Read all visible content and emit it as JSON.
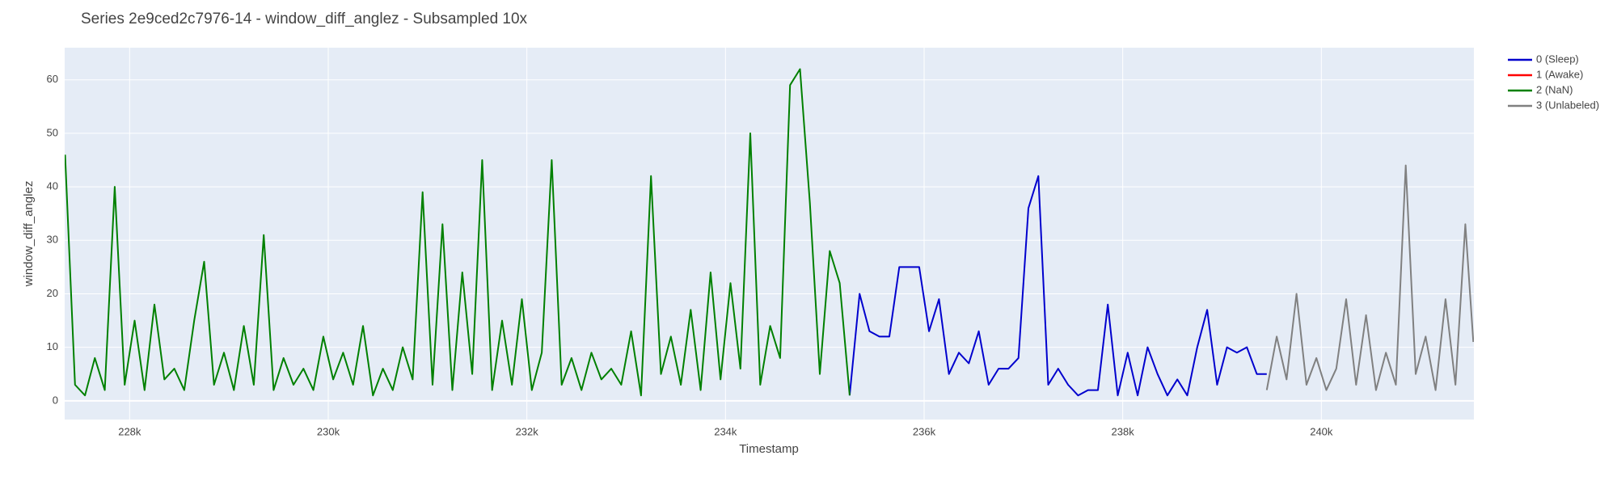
{
  "chart_data": {
    "type": "line",
    "title": "Series 2e9ced2c7976-14 - window_diff_anglez - Subsampled 10x",
    "x_label": "Timestamp",
    "y_label": "window_diff_anglez",
    "xlim": [
      227346,
      241536
    ],
    "ylim": [
      -3.5,
      66
    ],
    "xticks": [
      {
        "value": 228000,
        "label": "228k"
      },
      {
        "value": 230000,
        "label": "230k"
      },
      {
        "value": 232000,
        "label": "232k"
      },
      {
        "value": 234000,
        "label": "234k"
      },
      {
        "value": 236000,
        "label": "236k"
      },
      {
        "value": 238000,
        "label": "238k"
      },
      {
        "value": 240000,
        "label": "240k"
      }
    ],
    "yticks": [
      0,
      10,
      20,
      30,
      40,
      50,
      60
    ],
    "grid": true,
    "legend": "right",
    "series": [
      {
        "name": "0 (Sleep)",
        "color": "#0000cd",
        "x": [
          235250,
          235350,
          235450,
          235550,
          235650,
          235750,
          235850,
          235950,
          236050,
          236150,
          236250,
          236350,
          236450,
          236550,
          236650,
          236750,
          236850,
          236950,
          237050,
          237150,
          237250,
          237350,
          237450,
          237550,
          237650,
          237750,
          237850,
          237950,
          238050,
          238150,
          238250,
          238350,
          238450,
          238550,
          238650,
          238750,
          238850,
          238950,
          239050,
          239150,
          239250,
          239350,
          239450
        ],
        "values": [
          1,
          20,
          13,
          12,
          12,
          25,
          25,
          25,
          13,
          19,
          5,
          9,
          7,
          13,
          3,
          6,
          6,
          8,
          36,
          42,
          3,
          6,
          3,
          1,
          2,
          2,
          18,
          1,
          9,
          1,
          10,
          5,
          1,
          4,
          1,
          10,
          17,
          3,
          10,
          9,
          10,
          5,
          5
        ]
      },
      {
        "name": "1 (Awake)",
        "color": "#ff0000",
        "x": [],
        "values": []
      },
      {
        "name": "2 (NaN)",
        "color": "#008000",
        "x": [
          227350,
          227450,
          227550,
          227650,
          227750,
          227850,
          227950,
          228050,
          228150,
          228250,
          228350,
          228450,
          228550,
          228650,
          228750,
          228850,
          228950,
          229050,
          229150,
          229250,
          229350,
          229450,
          229550,
          229650,
          229750,
          229850,
          229950,
          230050,
          230150,
          230250,
          230350,
          230450,
          230550,
          230650,
          230750,
          230850,
          230950,
          231050,
          231150,
          231250,
          231350,
          231450,
          231550,
          231650,
          231750,
          231850,
          231950,
          232050,
          232150,
          232250,
          232350,
          232450,
          232550,
          232650,
          232750,
          232850,
          232950,
          233050,
          233150,
          233250,
          233350,
          233450,
          233550,
          233650,
          233750,
          233850,
          233950,
          234050,
          234150,
          234250,
          234350,
          234450,
          234550,
          234650,
          234750,
          234850,
          234950,
          235050,
          235150,
          235250
        ],
        "values": [
          46,
          3,
          1,
          8,
          2,
          40,
          3,
          15,
          2,
          18,
          4,
          6,
          2,
          15,
          26,
          3,
          9,
          2,
          14,
          3,
          31,
          2,
          8,
          3,
          6,
          2,
          12,
          4,
          9,
          3,
          14,
          1,
          6,
          2,
          10,
          4,
          39,
          3,
          33,
          2,
          24,
          5,
          45,
          2,
          15,
          3,
          19,
          2,
          9,
          45,
          3,
          8,
          2,
          9,
          4,
          6,
          3,
          13,
          1,
          42,
          5,
          12,
          3,
          17,
          2,
          24,
          4,
          22,
          6,
          50,
          3,
          14,
          8,
          59,
          62,
          37,
          5,
          28,
          22,
          1
        ]
      },
      {
        "name": "3 (Unlabeled)",
        "color": "#808080",
        "x": [
          239450,
          239550,
          239650,
          239750,
          239850,
          239950,
          240050,
          240150,
          240250,
          240350,
          240450,
          240550,
          240650,
          240750,
          240850,
          240950,
          241050,
          241150,
          241250,
          241350,
          241450,
          241530
        ],
        "values": [
          2,
          12,
          4,
          20,
          3,
          8,
          2,
          6,
          19,
          3,
          16,
          2,
          9,
          3,
          44,
          5,
          12,
          2,
          19,
          3,
          33,
          11
        ]
      }
    ]
  }
}
